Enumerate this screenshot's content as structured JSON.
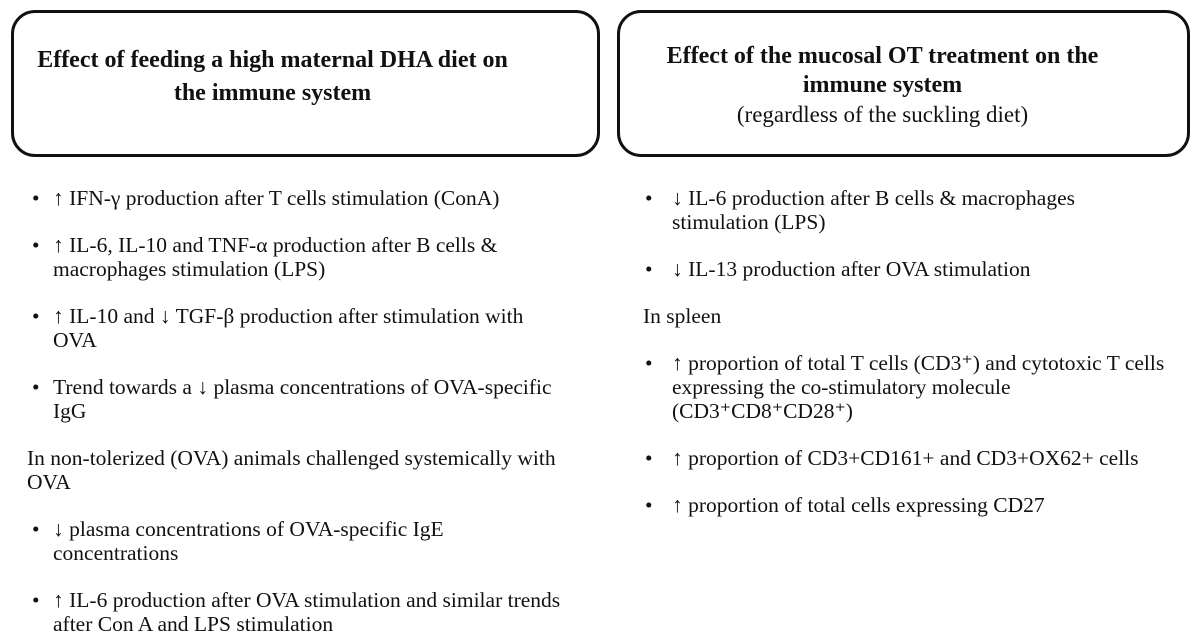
{
  "colors": {
    "text": "#111111",
    "box_border": "#111111",
    "background": "#ffffff"
  },
  "bullet_glyph": "•",
  "left_panel": {
    "title": "Effect of feeding a high maternal DHA diet on the immune system",
    "items": [
      {
        "type": "bullet",
        "text": "↑ IFN-γ production after T cells stimulation (ConA)"
      },
      {
        "type": "bullet",
        "text": "↑ IL-6, IL-10 and TNF-α production after B cells & macrophages stimulation (LPS)"
      },
      {
        "type": "bullet",
        "text": "↑ IL-10 and ↓ TGF-β production after stimulation with OVA"
      },
      {
        "type": "bullet",
        "text": "Trend towards a ↓ plasma concentrations of OVA-specific IgG"
      },
      {
        "type": "paragraph",
        "text": "In non-tolerized (OVA) animals challenged systemically with OVA"
      },
      {
        "type": "bullet",
        "text": "↓ plasma concentrations of OVA-specific IgE concentrations"
      },
      {
        "type": "bullet",
        "text": "↑ IL-6 production after OVA stimulation and similar trends after Con A and LPS stimulation"
      }
    ]
  },
  "right_panel": {
    "title": "Effect of the mucosal OT treatment on the immune system",
    "subtitle": "(regardless of the suckling diet)",
    "items": [
      {
        "type": "bullet",
        "text": "↓ IL-6 production after B cells & macrophages stimulation (LPS)"
      },
      {
        "type": "bullet",
        "text": "↓ IL-13 production after OVA stimulation"
      },
      {
        "type": "paragraph",
        "text": "In spleen"
      },
      {
        "type": "bullet",
        "text": "↑ proportion of total T cells (CD3⁺) and cytotoxic T cells expressing the co-stimulatory molecule (CD3⁺CD8⁺CD28⁺)"
      },
      {
        "type": "bullet",
        "text": "↑ proportion of CD3+CD161+ and CD3+OX62+ cells"
      },
      {
        "type": "bullet",
        "text": "↑ proportion of total cells expressing CD27"
      }
    ]
  }
}
